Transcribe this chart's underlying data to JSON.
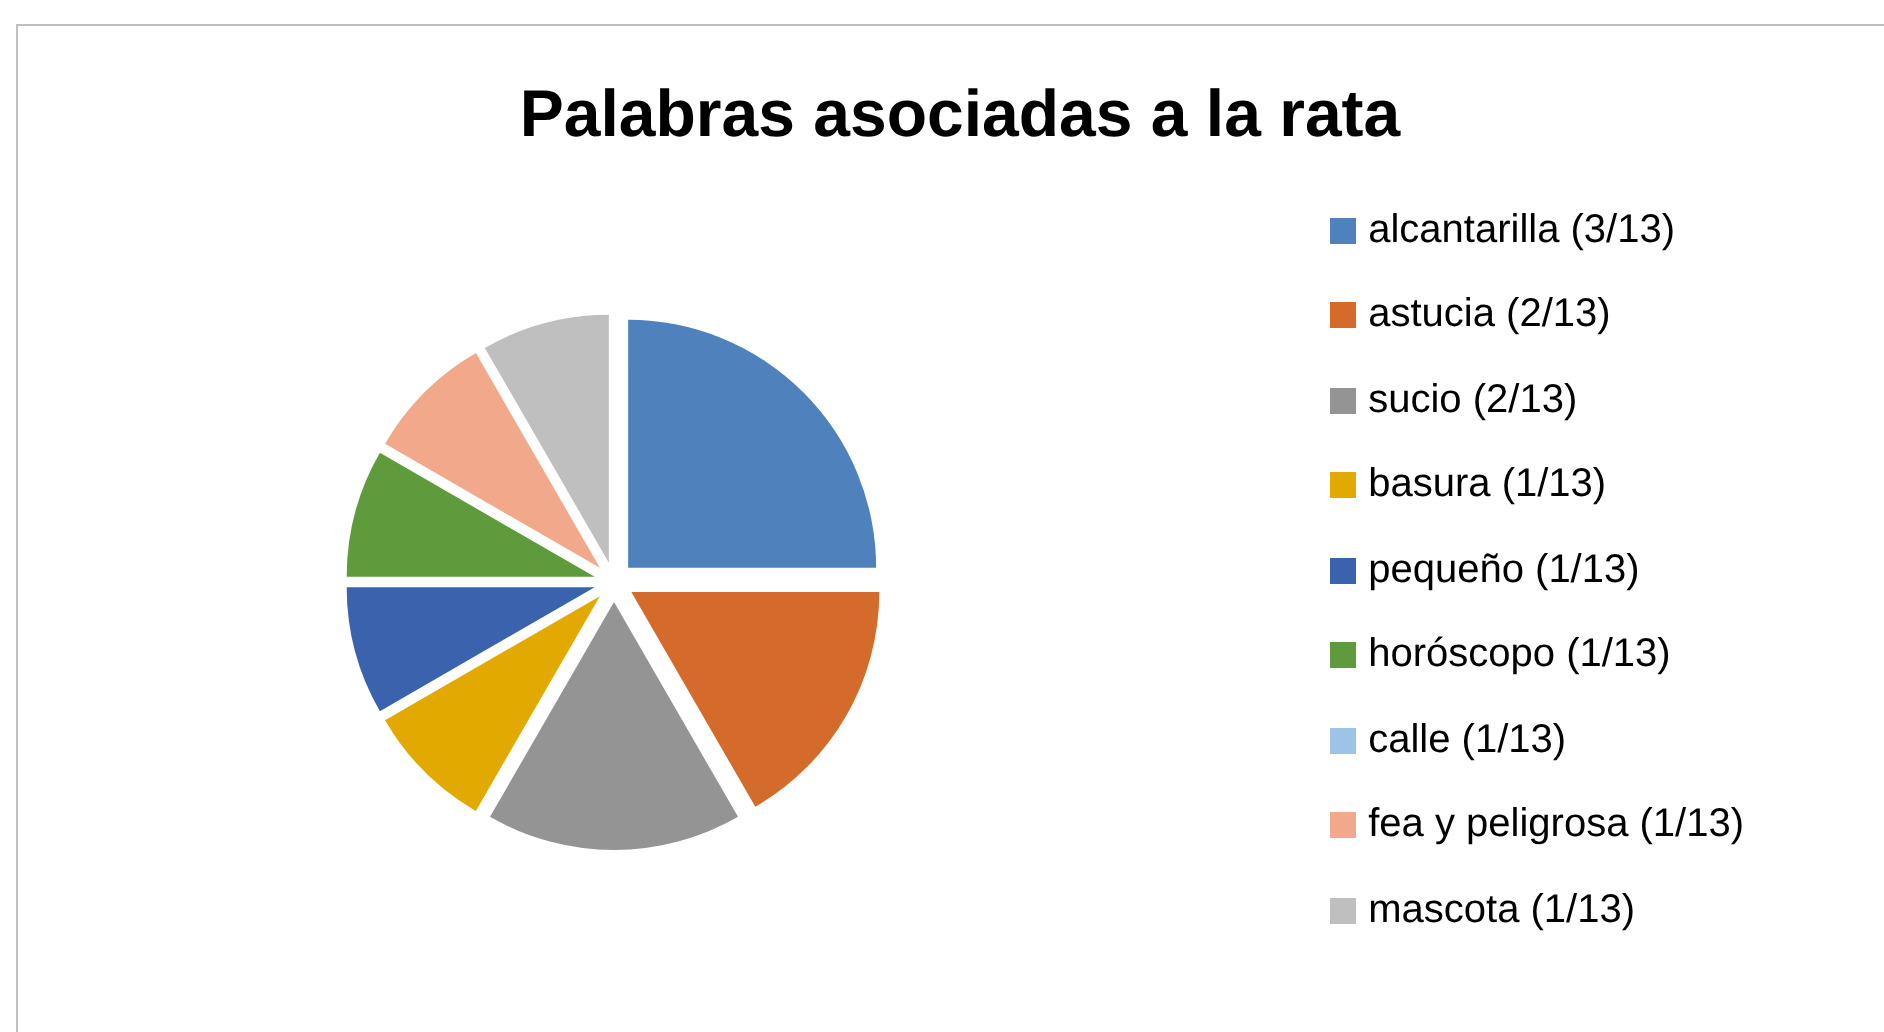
{
  "chart_data": {
    "type": "pie",
    "title": "Palabras asociadas a la rata",
    "categories": [
      "alcantarilla (3/13)",
      "astucia (2/13)",
      "sucio (2/13)",
      "basura (1/13)",
      "pequeño (1/13)",
      "horóscopo (1/13)",
      "calle (1/13)",
      "fea y peligrosa (1/13)",
      "mascota (1/13)"
    ],
    "values": [
      3,
      2,
      2,
      1,
      1,
      1,
      0,
      1,
      1
    ],
    "colors": [
      "#4f81bd",
      "#d46b2a",
      "#949494",
      "#e2a900",
      "#3b63ad",
      "#5f9b3c",
      "#9dc3e6",
      "#f2a88a",
      "#bfbfbf"
    ],
    "legend": "right"
  }
}
